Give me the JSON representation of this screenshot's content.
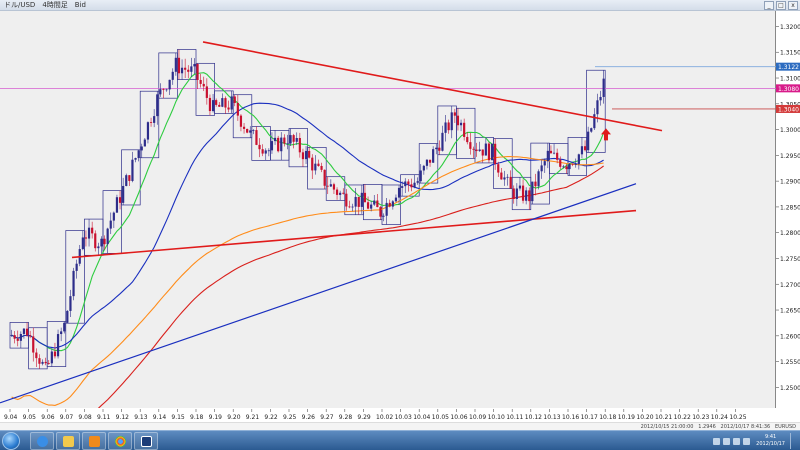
{
  "window": {
    "title": "ドル/USD　4時間足　Bid",
    "controls": [
      "_",
      "□",
      "x"
    ]
  },
  "price_axis": {
    "ticks": [
      "1.3200",
      "1.3150",
      "1.3100",
      "1.3050",
      "1.3000",
      "1.2950",
      "1.2900",
      "1.2850",
      "1.2800",
      "1.2750",
      "1.2700",
      "1.2650",
      "1.2600",
      "1.2550",
      "1.2500"
    ],
    "tags": {
      "line_a": "1.3122",
      "line_b": "1.3080",
      "line_c": "1.3040"
    },
    "tag_colors": {
      "line_a": "#2d6cc0",
      "line_b": "#d81b8a",
      "line_c": "#d33a3a"
    }
  },
  "time_axis": {
    "labels": [
      "9.04",
      "9.05",
      "9.06",
      "9.07",
      "9.08",
      "9.11",
      "9.12",
      "9.13",
      "9.14",
      "9.15",
      "9.18",
      "9.19",
      "9.20",
      "9.21",
      "9.22",
      "9.25",
      "9.26",
      "9.27",
      "9.28",
      "9.29",
      "10.02",
      "10.03",
      "10.04",
      "10.05",
      "10.06",
      "10.09",
      "10.10",
      "10.11",
      "10.12",
      "10.13",
      "10.16",
      "10.17",
      "10.18",
      "10.19",
      "10.20",
      "10.21",
      "10.22",
      "10.23",
      "10.24",
      "10.25"
    ]
  },
  "status": {
    "line1": "2012/10/15 21:00:00   1.2946",
    "line2": "2012/10/17 8:41:36",
    "symbol": "EURUSD"
  },
  "taskbar": {
    "apps": [
      "ie-icon",
      "explorer-icon",
      "outlook-icon",
      "chrome-icon",
      "trading-icon"
    ],
    "clock_time": "9:41",
    "clock_date": "2012/10/17"
  },
  "chart_data": {
    "type": "candlestick",
    "symbol": "EURUSD",
    "timeframe": "4H",
    "ylim": [
      1.246,
      1.323
    ],
    "x_categories": [
      "9.04",
      "9.05",
      "9.06",
      "9.07",
      "9.08",
      "9.11",
      "9.12",
      "9.13",
      "9.14",
      "9.15",
      "9.18",
      "9.19",
      "9.20",
      "9.21",
      "9.22",
      "9.25",
      "9.26",
      "9.27",
      "9.28",
      "9.29",
      "10.02",
      "10.03",
      "10.04",
      "10.05",
      "10.06",
      "10.09",
      "10.10",
      "10.11",
      "10.12",
      "10.13",
      "10.16",
      "10.17"
    ],
    "day_close": [
      1.261,
      1.253,
      1.262,
      1.28,
      1.278,
      1.287,
      1.296,
      1.306,
      1.3125,
      1.311,
      1.304,
      1.305,
      1.299,
      1.296,
      1.2985,
      1.295,
      1.29,
      1.287,
      1.286,
      1.284,
      1.289,
      1.29,
      1.2965,
      1.303,
      1.297,
      1.2955,
      1.288,
      1.287,
      1.295,
      1.2935,
      1.296,
      1.309
    ],
    "horizontal_lines": [
      1.3122,
      1.308,
      1.304
    ],
    "colors": {
      "bull_candle": "#2d2d8a",
      "bear_candle": "#c8102e",
      "ma_short": "#2ecc40",
      "ma_mid": "#1a2fbf",
      "ma_long_orange": "#ff8c1a",
      "ma_long_red": "#d9201c",
      "trendline": "#e01b1b",
      "trendline_blue": "#1a2fbf",
      "hline_blue": "#7fa9dd",
      "hline_magenta": "#d65fd0",
      "hline_red": "#c84a4a",
      "arrow": "#e01b1b",
      "box": "#2d2d8a"
    }
  }
}
